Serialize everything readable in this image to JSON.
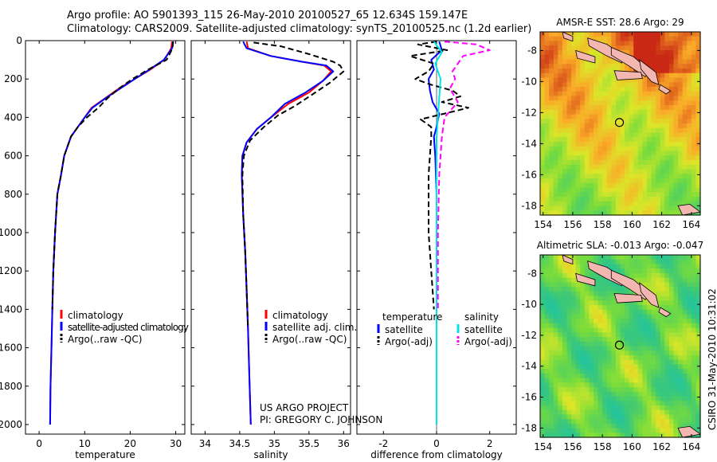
{
  "header": {
    "line1": "Argo profile: AO 5901393_115 26-May-2010 20100527_65 12.634S 159.147E",
    "line2": "Climatology: CARS2009. Satellite-adjusted climatology: synTS_20100525.nc (1.2d earlier)"
  },
  "credit": {
    "project": "US ARGO PROJECT",
    "pi": "PI: GREGORY C. JOHNSON",
    "stamp": "CSIRO 31-May-2010 10:31:02"
  },
  "colors": {
    "climatology": "#ff0000",
    "satellite": "#0000ff",
    "argo": "#000000",
    "sat_salinity": "#00e5e5",
    "argo_salinity": "#ff00ff",
    "land": "#f4b6b0"
  },
  "chart_data": [
    {
      "type": "line",
      "xlabel": "temperature",
      "xlim": [
        -3,
        32
      ],
      "xticks": [
        0,
        10,
        20,
        30
      ],
      "ylim": [
        2050,
        0
      ],
      "yticks": [
        0,
        200,
        400,
        600,
        800,
        1000,
        1200,
        1400,
        1600,
        1800,
        2000
      ],
      "legend": [
        "climatology",
        "satellite-adjusted climatology",
        "Argo(..raw -QC)"
      ],
      "legend_location": "lower-right",
      "series": [
        {
          "name": "climatology",
          "color": "#ff0000",
          "style": "solid",
          "x": [
            29.2,
            29.0,
            27.5,
            24.5,
            21.0,
            17.5,
            14.5,
            11.5,
            10.0,
            8.5,
            7.0,
            5.5,
            4.8,
            4.0,
            3.5,
            3.1,
            2.9,
            2.7,
            2.5,
            2.4
          ],
          "y": [
            5,
            40,
            100,
            150,
            200,
            250,
            300,
            350,
            400,
            450,
            500,
            600,
            700,
            800,
            1000,
            1200,
            1400,
            1600,
            1800,
            2000
          ]
        },
        {
          "name": "satellite-adjusted climatology",
          "color": "#0000ff",
          "style": "solid",
          "x": [
            29.5,
            29.2,
            27.4,
            24.3,
            21.0,
            17.8,
            14.6,
            11.7,
            10.0,
            8.5,
            7.0,
            5.5,
            4.8,
            4.0,
            3.5,
            3.1,
            2.9,
            2.7,
            2.5,
            2.4
          ],
          "y": [
            5,
            40,
            100,
            150,
            200,
            250,
            300,
            350,
            400,
            450,
            500,
            600,
            700,
            800,
            1000,
            1200,
            1400,
            1600,
            1800,
            2000
          ]
        },
        {
          "name": "Argo(..raw -QC)",
          "color": "#000000",
          "style": "dashed",
          "x": [
            29.4,
            29.3,
            28.0,
            24.0,
            20.5,
            17.5,
            15.0,
            13.0,
            10.5,
            8.5,
            7.0,
            5.5,
            4.8,
            4.0,
            3.5,
            3.1,
            2.9
          ],
          "y": [
            5,
            40,
            100,
            150,
            200,
            250,
            300,
            350,
            400,
            450,
            500,
            600,
            700,
            800,
            1000,
            1200,
            1400
          ]
        }
      ]
    },
    {
      "type": "line",
      "xlabel": "salinity",
      "xlim": [
        33.8,
        36.1
      ],
      "xticks": [
        34,
        34.5,
        35,
        35.5,
        36
      ],
      "ylim": [
        2050,
        0
      ],
      "yticks": [
        0,
        200,
        400,
        600,
        800,
        1000,
        1200,
        1400,
        1600,
        1800,
        2000
      ],
      "legend": [
        "climatology",
        "satellite adj. clim.",
        "Argo(..raw -QC)"
      ],
      "legend_location": "lower-right",
      "series": [
        {
          "name": "climatology",
          "color": "#ff0000",
          "style": "solid",
          "x": [
            34.6,
            34.62,
            34.95,
            35.4,
            35.72,
            35.82,
            35.7,
            35.5,
            35.2,
            34.95,
            34.75,
            34.6,
            34.54,
            34.53,
            34.55,
            34.58,
            34.6,
            34.62,
            34.64,
            34.66
          ],
          "y": [
            5,
            40,
            80,
            110,
            130,
            160,
            210,
            270,
            330,
            400,
            460,
            530,
            600,
            700,
            900,
            1100,
            1300,
            1500,
            1750,
            2000
          ]
        },
        {
          "name": "satellite adj. clim.",
          "color": "#0000ff",
          "style": "solid",
          "x": [
            34.55,
            34.6,
            34.95,
            35.4,
            35.75,
            35.85,
            35.7,
            35.45,
            35.15,
            34.95,
            34.75,
            34.6,
            34.54,
            34.53,
            34.55,
            34.58,
            34.6,
            34.62,
            34.64,
            34.66
          ],
          "y": [
            5,
            40,
            80,
            110,
            130,
            160,
            210,
            270,
            330,
            400,
            460,
            530,
            600,
            700,
            900,
            1100,
            1300,
            1500,
            1750,
            2000
          ]
        },
        {
          "name": "Argo(..raw -QC)",
          "color": "#000000",
          "style": "dashed",
          "x": [
            34.7,
            35.1,
            35.5,
            35.85,
            35.95,
            36.0,
            35.8,
            35.55,
            35.3,
            35.05,
            34.85,
            34.65,
            34.56,
            34.54,
            34.55,
            34.58,
            34.6,
            34.62
          ],
          "y": [
            10,
            30,
            70,
            110,
            130,
            160,
            220,
            280,
            340,
            390,
            450,
            520,
            600,
            700,
            900,
            1100,
            1300,
            1500
          ]
        }
      ]
    },
    {
      "type": "line",
      "xlabel": "difference from climatology",
      "xlim": [
        -3,
        3
      ],
      "xticks": [
        -2,
        0,
        2
      ],
      "ylim": [
        2050,
        0
      ],
      "yticks": [
        0,
        200,
        400,
        600,
        800,
        1000,
        1200,
        1400,
        1600,
        1800,
        2000
      ],
      "legend_headers": [
        "temperature",
        "salinity"
      ],
      "legend": [
        "satellite",
        "Argo(-adj)",
        "satellite",
        "Argo(-adj)"
      ],
      "legend_location": "lower-right",
      "series": [
        {
          "name": "satellite",
          "color": "#0000ff",
          "style": "solid",
          "x": [
            0.1,
            0.2,
            -0.2,
            -0.1,
            -0.3,
            -0.25,
            -0.15,
            0.1,
            0.0,
            -0.1,
            -0.05,
            0.0,
            0.0,
            0.0,
            0.0,
            0.0
          ],
          "y": [
            5,
            50,
            100,
            150,
            200,
            260,
            320,
            380,
            450,
            500,
            600,
            800,
            1000,
            1400,
            1700,
            2000
          ]
        },
        {
          "name": "Argo(-adj)",
          "color": "#000000",
          "style": "dashed",
          "x": [
            0.0,
            -0.7,
            0.4,
            -1.0,
            -0.1,
            -0.3,
            -0.8,
            -0.2,
            0.6,
            0.9,
            0.2,
            1.2,
            0.3,
            -0.6,
            -0.2,
            -0.2,
            -0.3,
            -0.3,
            -0.2,
            -0.1
          ],
          "y": [
            5,
            20,
            50,
            80,
            120,
            160,
            200,
            230,
            260,
            290,
            320,
            350,
            380,
            410,
            450,
            500,
            700,
            1000,
            1200,
            1400
          ]
        },
        {
          "name": "satellite",
          "color": "#00e5e5",
          "style": "solid",
          "x": [
            -0.1,
            0.2,
            -0.05,
            0.15,
            0.1,
            0.05,
            0.0,
            0.0,
            0.0,
            0.0,
            0.0
          ],
          "y": [
            5,
            60,
            120,
            200,
            300,
            400,
            500,
            800,
            1200,
            1600,
            2000
          ]
        },
        {
          "name": "Argo(-adj)",
          "color": "#ff00ff",
          "style": "dashed",
          "x": [
            0.3,
            1.5,
            2.0,
            1.0,
            0.8,
            0.6,
            0.7,
            0.5,
            0.8,
            0.3,
            0.2,
            0.1,
            0.05,
            0.05
          ],
          "y": [
            5,
            20,
            50,
            80,
            120,
            160,
            200,
            250,
            320,
            400,
            500,
            700,
            1000,
            1400
          ]
        }
      ]
    },
    {
      "type": "heatmap",
      "title": "AMSR-E SST: 28.6 Argo: 29",
      "xlim": [
        153.8,
        164.6
      ],
      "ylim": [
        -18.6,
        -6.8
      ],
      "xticks": [
        154,
        156,
        158,
        160,
        162,
        164
      ],
      "yticks": [
        -8,
        -10,
        -12,
        -14,
        -16,
        -18
      ],
      "marker": {
        "lon": 159.147,
        "lat": -12.634
      }
    },
    {
      "type": "heatmap",
      "title": "Altimetric SLA: -0.013 Argo: -0.047",
      "xlim": [
        153.8,
        164.6
      ],
      "ylim": [
        -18.6,
        -6.8
      ],
      "xticks": [
        154,
        156,
        158,
        160,
        162,
        164
      ],
      "yticks": [
        -8,
        -10,
        -12,
        -14,
        -16,
        -18
      ],
      "marker": {
        "lon": 159.147,
        "lat": -12.634
      }
    }
  ]
}
